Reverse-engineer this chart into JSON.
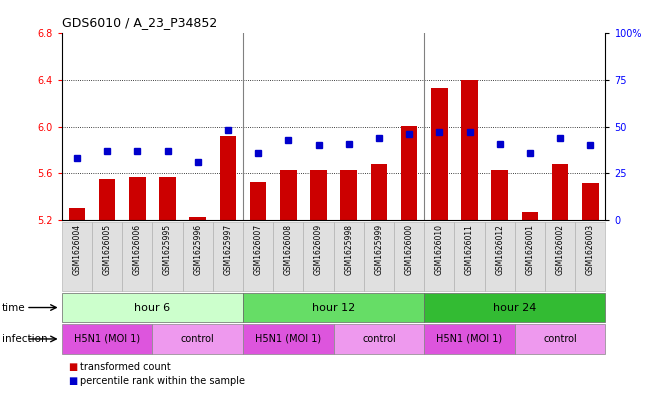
{
  "title": "GDS6010 / A_23_P34852",
  "samples": [
    "GSM1626004",
    "GSM1626005",
    "GSM1626006",
    "GSM1625995",
    "GSM1625996",
    "GSM1625997",
    "GSM1626007",
    "GSM1626008",
    "GSM1626009",
    "GSM1625998",
    "GSM1625999",
    "GSM1626000",
    "GSM1626010",
    "GSM1626011",
    "GSM1626012",
    "GSM1626001",
    "GSM1626002",
    "GSM1626003"
  ],
  "red_values": [
    5.3,
    5.55,
    5.57,
    5.57,
    5.23,
    5.92,
    5.53,
    5.63,
    5.63,
    5.63,
    5.68,
    6.01,
    6.33,
    6.4,
    5.63,
    5.27,
    5.68,
    5.52
  ],
  "blue_values": [
    33,
    37,
    37,
    37,
    31,
    48,
    36,
    43,
    40,
    41,
    44,
    46,
    47,
    47,
    41,
    36,
    44,
    40
  ],
  "ylim_left": [
    5.2,
    6.8
  ],
  "ylim_right": [
    0,
    100
  ],
  "yticks_left": [
    5.2,
    5.6,
    6.0,
    6.4,
    6.8
  ],
  "yticks_right": [
    0,
    25,
    50,
    75,
    100
  ],
  "ytick_labels_right": [
    "0",
    "25",
    "50",
    "75",
    "100%"
  ],
  "grid_lines": [
    5.6,
    6.0,
    6.4
  ],
  "bar_color": "#cc0000",
  "dot_color": "#0000cc",
  "bar_bottom": 5.2,
  "time_groups": [
    {
      "label": "hour 6",
      "start": 0,
      "end": 6,
      "color": "#ccffcc"
    },
    {
      "label": "hour 12",
      "start": 6,
      "end": 12,
      "color": "#66dd66"
    },
    {
      "label": "hour 24",
      "start": 12,
      "end": 18,
      "color": "#33bb33"
    }
  ],
  "infection_groups": [
    {
      "label": "H5N1 (MOI 1)",
      "start": 0,
      "end": 3,
      "h5n1": true
    },
    {
      "label": "control",
      "start": 3,
      "end": 6,
      "h5n1": false
    },
    {
      "label": "H5N1 (MOI 1)",
      "start": 6,
      "end": 9,
      "h5n1": true
    },
    {
      "label": "control",
      "start": 9,
      "end": 12,
      "h5n1": false
    },
    {
      "label": "H5N1 (MOI 1)",
      "start": 12,
      "end": 15,
      "h5n1": true
    },
    {
      "label": "control",
      "start": 15,
      "end": 18,
      "h5n1": false
    }
  ],
  "infection_h5n1_color": "#dd55dd",
  "infection_ctrl_color": "#ee99ee",
  "time_label": "time",
  "infection_label": "infection",
  "legend_red": "transformed count",
  "legend_blue": "percentile rank within the sample",
  "background_color": "#ffffff",
  "axes_bg": "#ffffff",
  "title_fontsize": 9,
  "tick_fontsize": 7,
  "bar_width": 0.55
}
